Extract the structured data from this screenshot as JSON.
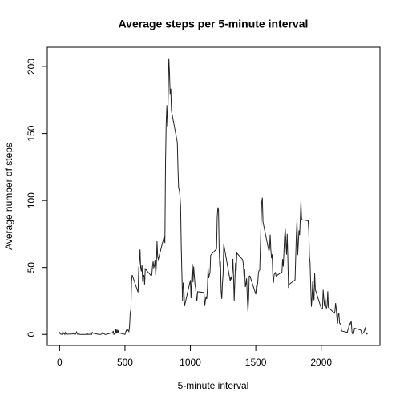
{
  "chart_data": {
    "type": "line",
    "title": "Average steps per 5-minute interval",
    "xlabel": "5-minute interval",
    "ylabel": "Average number of steps",
    "color": "#222222",
    "xlim": [
      -94.2,
      2449.2
    ],
    "ylim": [
      -8.25,
      214.42
    ],
    "xticks": [
      0,
      500,
      1000,
      1500,
      2000
    ],
    "yticks": [
      0,
      50,
      100,
      150,
      200
    ],
    "x": [
      0,
      5,
      10,
      15,
      20,
      25,
      30,
      35,
      40,
      45,
      50,
      55,
      100,
      105,
      110,
      115,
      120,
      125,
      130,
      135,
      140,
      145,
      150,
      155,
      200,
      205,
      210,
      215,
      220,
      225,
      230,
      235,
      240,
      245,
      250,
      255,
      300,
      305,
      310,
      315,
      320,
      325,
      330,
      335,
      340,
      345,
      350,
      355,
      400,
      405,
      410,
      415,
      420,
      425,
      430,
      435,
      440,
      445,
      450,
      455,
      500,
      505,
      510,
      515,
      520,
      525,
      530,
      535,
      540,
      545,
      550,
      555,
      600,
      605,
      610,
      615,
      620,
      625,
      630,
      635,
      640,
      645,
      650,
      655,
      700,
      705,
      710,
      715,
      720,
      725,
      730,
      735,
      740,
      745,
      750,
      755,
      800,
      805,
      810,
      815,
      820,
      825,
      830,
      835,
      840,
      845,
      850,
      855,
      900,
      905,
      910,
      915,
      920,
      925,
      930,
      935,
      940,
      945,
      950,
      955,
      1000,
      1005,
      1010,
      1015,
      1020,
      1025,
      1030,
      1035,
      1040,
      1045,
      1050,
      1055,
      1100,
      1105,
      1110,
      1115,
      1120,
      1125,
      1130,
      1135,
      1140,
      1145,
      1150,
      1155,
      1200,
      1205,
      1210,
      1215,
      1220,
      1225,
      1230,
      1235,
      1240,
      1245,
      1250,
      1255,
      1300,
      1305,
      1310,
      1315,
      1320,
      1325,
      1330,
      1335,
      1340,
      1345,
      1350,
      1355,
      1400,
      1405,
      1410,
      1415,
      1420,
      1425,
      1430,
      1435,
      1440,
      1445,
      1450,
      1455,
      1500,
      1505,
      1510,
      1515,
      1520,
      1525,
      1530,
      1535,
      1540,
      1545,
      1550,
      1555,
      1600,
      1605,
      1610,
      1615,
      1620,
      1625,
      1630,
      1635,
      1640,
      1645,
      1650,
      1655,
      1700,
      1705,
      1710,
      1715,
      1720,
      1725,
      1730,
      1735,
      1740,
      1745,
      1750,
      1755,
      1800,
      1805,
      1810,
      1815,
      1820,
      1825,
      1830,
      1835,
      1840,
      1845,
      1850,
      1855,
      1900,
      1905,
      1910,
      1915,
      1920,
      1925,
      1930,
      1935,
      1940,
      1945,
      1950,
      1955,
      2000,
      2005,
      2010,
      2015,
      2020,
      2025,
      2030,
      2035,
      2040,
      2045,
      2050,
      2055,
      2100,
      2105,
      2110,
      2115,
      2120,
      2125,
      2130,
      2135,
      2140,
      2145,
      2150,
      2155,
      2200,
      2205,
      2210,
      2215,
      2220,
      2225,
      2230,
      2235,
      2240,
      2245,
      2250,
      2255,
      2300,
      2305,
      2310,
      2315,
      2320,
      2325,
      2330,
      2335,
      2340,
      2345,
      2350,
      2355
    ],
    "values": [
      1.72,
      0.34,
      0.13,
      0.15,
      0.08,
      2.09,
      0.53,
      0.87,
      0,
      1.47,
      0.3,
      0.13,
      0.32,
      0.68,
      0.15,
      0.34,
      0,
      1.11,
      1.83,
      0.17,
      0.17,
      0.38,
      0.26,
      0,
      0,
      0,
      1.13,
      0,
      0,
      0.13,
      0,
      0.23,
      0,
      0,
      1.55,
      0.94,
      0,
      0,
      0,
      0,
      0.21,
      0.62,
      1.62,
      0.58,
      0.49,
      0.08,
      0,
      0,
      1.19,
      0.94,
      2.57,
      0,
      0.34,
      0.36,
      4.11,
      0.66,
      3.49,
      0.83,
      3.11,
      1.11,
      0,
      1.57,
      3,
      2.25,
      3.32,
      2.96,
      2.09,
      6.06,
      16.02,
      18.34,
      39.45,
      44.49,
      31.49,
      49.26,
      53.77,
      63.45,
      49.96,
      47.08,
      52.15,
      39.34,
      44.02,
      44.17,
      37.36,
      49.04,
      43.81,
      44.38,
      50.51,
      54.51,
      49.92,
      50.98,
      55.68,
      44.32,
      52.26,
      69.55,
      57.85,
      56.15,
      73.38,
      68.21,
      129.43,
      157.53,
      171.15,
      155.4,
      177.3,
      206.17,
      195.92,
      179.57,
      183.4,
      167.02,
      143.45,
      124.04,
      109.11,
      108.11,
      103.72,
      95.96,
      66.21,
      45.23,
      24.79,
      38.75,
      34.98,
      21.06,
      40.57,
      26.98,
      42.42,
      52.66,
      38.92,
      50.79,
      44.28,
      37.42,
      34.7,
      28.34,
      25.09,
      31.94,
      31.36,
      29.68,
      21.32,
      25.55,
      28.38,
      26.47,
      33.43,
      49.98,
      42.04,
      44.6,
      46.04,
      59.19,
      63.87,
      87.7,
      94.85,
      92.77,
      63.4,
      50.17,
      54.47,
      32.42,
      26.53,
      37.74,
      45.06,
      67.28,
      42.34,
      39.89,
      43.26,
      40.98,
      46.25,
      56.43,
      42.75,
      25.13,
      39.96,
      53.55,
      47.32,
      60.81,
      55.75,
      51.96,
      43.58,
      48.7,
      35.47,
      37.55,
      41.85,
      27.51,
      17.11,
      26.08,
      43.62,
      43.77,
      30.02,
      36.08,
      35.49,
      38.85,
      45.96,
      47.75,
      48.13,
      65.32,
      82.91,
      98.66,
      102.11,
      83.96,
      62.13,
      64.13,
      74.55,
      63.17,
      56.91,
      59.77,
      43.87,
      38.57,
      44.66,
      45.45,
      46.21,
      43.68,
      46.62,
      56.3,
      50.72,
      61.23,
      72.72,
      78.94,
      68.94,
      59.66,
      75.09,
      56.51,
      34.77,
      37.45,
      40.68,
      58.02,
      74.7,
      85.32,
      59.26,
      67.77,
      77.7,
      74.25,
      85.34,
      99.45,
      86.58,
      85.6,
      84.87,
      77.83,
      58.04,
      53.36,
      36.32,
      20.72,
      27.4,
      40.02,
      30.21,
      25.55,
      45.66,
      33.53,
      19.62,
      19.02,
      19.34,
      33.34,
      26.81,
      21.17,
      27.3,
      21.34,
      19.55,
      21.32,
      32.3,
      20.15,
      15.94,
      17.23,
      23.45,
      19.25,
      12.45,
      8.02,
      14.66,
      16.3,
      8.68,
      7.79,
      8.13,
      2.62,
      1.45,
      3.68,
      4.81,
      8.51,
      7.08,
      8.7,
      9.75,
      2.21,
      0.32,
      0.11,
      1.6,
      4.6,
      3.3,
      2.85,
      0,
      0.83,
      0.96,
      1.58,
      2.6,
      4.7,
      3.3,
      0.64,
      0.23,
      1.08
    ]
  }
}
